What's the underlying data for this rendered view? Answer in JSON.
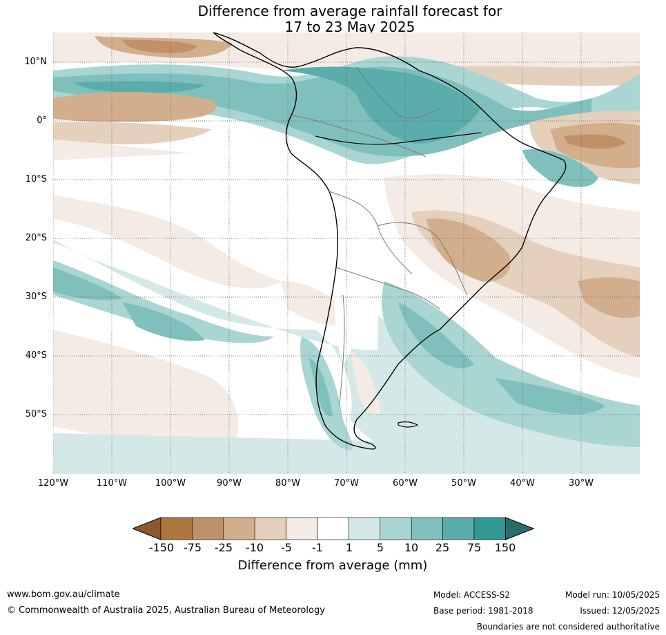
{
  "title": {
    "line1": "Difference from average rainfall forecast for",
    "line2": "17 to 23 May 2025"
  },
  "map": {
    "lat_labels": [
      "10°N",
      "0°",
      "10°S",
      "20°S",
      "30°S",
      "40°S",
      "50°S"
    ],
    "lon_labels": [
      "120°W",
      "110°W",
      "100°W",
      "90°W",
      "80°W",
      "70°W",
      "60°W",
      "50°W",
      "40°W",
      "30°W"
    ],
    "extent": {
      "lon_min": -120,
      "lon_max": -20,
      "lat_min": -60,
      "lat_max": 15
    },
    "gridlines": "dotted"
  },
  "legend": {
    "title": "Difference from average (mm)",
    "tick_labels": [
      "-150",
      "-75",
      "-25",
      "-10",
      "-5",
      "-1",
      "1",
      "5",
      "10",
      "25",
      "75",
      "150"
    ],
    "colors": [
      "#8a5a2e",
      "#ad773d",
      "#c09168",
      "#d3ae8d",
      "#e5d0bd",
      "#f4ebe5",
      "#ffffff",
      "#d4e9e7",
      "#a9d5d2",
      "#80c0bc",
      "#5aadaa",
      "#319894",
      "#2a6c6a"
    ]
  },
  "footer": {
    "website": "www.bom.gov.au/climate",
    "copyright": "© Commonwealth of Australia 2025, Australian Bureau of Meteorology",
    "model": "Model: ACCESS-S2",
    "base_period": "Base period: 1981-2018",
    "model_run": "Model run: 10/05/2025",
    "issued": "Issued: 12/05/2025",
    "disclaimer": "Boundaries are not considered authoritative"
  }
}
